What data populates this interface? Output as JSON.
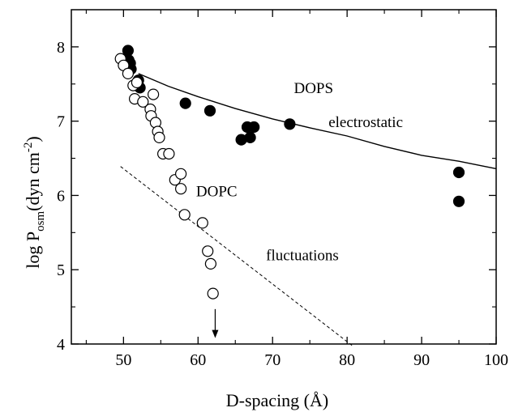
{
  "chart_data": {
    "type": "scatter",
    "xlabel": "D-spacing (Å)",
    "ylabel": {
      "prefix": "log P",
      "subscript": "osm",
      "unit_open": "(dyn cm",
      "superscript": "-2",
      "unit_close": ")"
    },
    "xlim": [
      43,
      100
    ],
    "ylim": [
      4,
      8.5
    ],
    "x_ticks": [
      50,
      60,
      70,
      80,
      90,
      100
    ],
    "y_ticks": [
      4,
      5,
      6,
      7,
      8
    ],
    "grid": false,
    "series": [
      {
        "name": "DOPS",
        "marker": "filled-circle",
        "points": [
          [
            50.6,
            7.95
          ],
          [
            50.7,
            7.82
          ],
          [
            50.9,
            7.78
          ],
          [
            51.0,
            7.7
          ],
          [
            52.0,
            7.55
          ],
          [
            52.2,
            7.45
          ],
          [
            58.3,
            7.24
          ],
          [
            61.6,
            7.14
          ],
          [
            65.8,
            6.75
          ],
          [
            66.6,
            6.92
          ],
          [
            67.0,
            6.78
          ],
          [
            67.5,
            6.92
          ],
          [
            72.3,
            6.96
          ],
          [
            95.0,
            6.31
          ],
          [
            95.0,
            5.92
          ]
        ]
      },
      {
        "name": "DOPC",
        "marker": "open-circle",
        "points": [
          [
            49.6,
            7.84
          ],
          [
            50.0,
            7.75
          ],
          [
            50.6,
            7.64
          ],
          [
            51.3,
            7.48
          ],
          [
            51.5,
            7.3
          ],
          [
            51.8,
            7.52
          ],
          [
            52.6,
            7.26
          ],
          [
            53.6,
            7.16
          ],
          [
            53.7,
            7.07
          ],
          [
            54.0,
            7.36
          ],
          [
            54.3,
            6.98
          ],
          [
            54.6,
            6.86
          ],
          [
            54.8,
            6.78
          ],
          [
            55.3,
            6.56
          ],
          [
            56.1,
            6.56
          ],
          [
            56.9,
            6.21
          ],
          [
            57.7,
            6.29
          ],
          [
            57.7,
            6.09
          ],
          [
            58.2,
            5.74
          ],
          [
            60.6,
            5.63
          ],
          [
            61.3,
            5.25
          ],
          [
            61.7,
            5.08
          ],
          [
            62.0,
            4.68
          ]
        ]
      }
    ],
    "curves": [
      {
        "name": "electrostatic",
        "style": "solid",
        "points": [
          [
            52.0,
            7.64
          ],
          [
            56,
            7.47
          ],
          [
            60,
            7.33
          ],
          [
            65,
            7.17
          ],
          [
            70,
            7.03
          ],
          [
            75,
            6.91
          ],
          [
            80,
            6.8
          ],
          [
            85,
            6.66
          ],
          [
            90,
            6.54
          ],
          [
            95,
            6.46
          ],
          [
            100,
            6.36
          ]
        ]
      },
      {
        "name": "fluctuations",
        "style": "dashed",
        "points": [
          [
            49.6,
            6.39
          ],
          [
            80.8,
            3.97
          ]
        ]
      }
    ],
    "annotations": [
      {
        "text": "DOPS",
        "x": 75.5,
        "y": 7.38
      },
      {
        "text": "electrostatic",
        "x": 82.5,
        "y": 6.92
      },
      {
        "text": "DOPC",
        "x": 62.5,
        "y": 5.99
      },
      {
        "text": "fluctuations",
        "x": 74.0,
        "y": 5.13
      }
    ],
    "arrow": {
      "x": 62.3,
      "y_from": 4.47,
      "y_to": 4.08
    }
  }
}
